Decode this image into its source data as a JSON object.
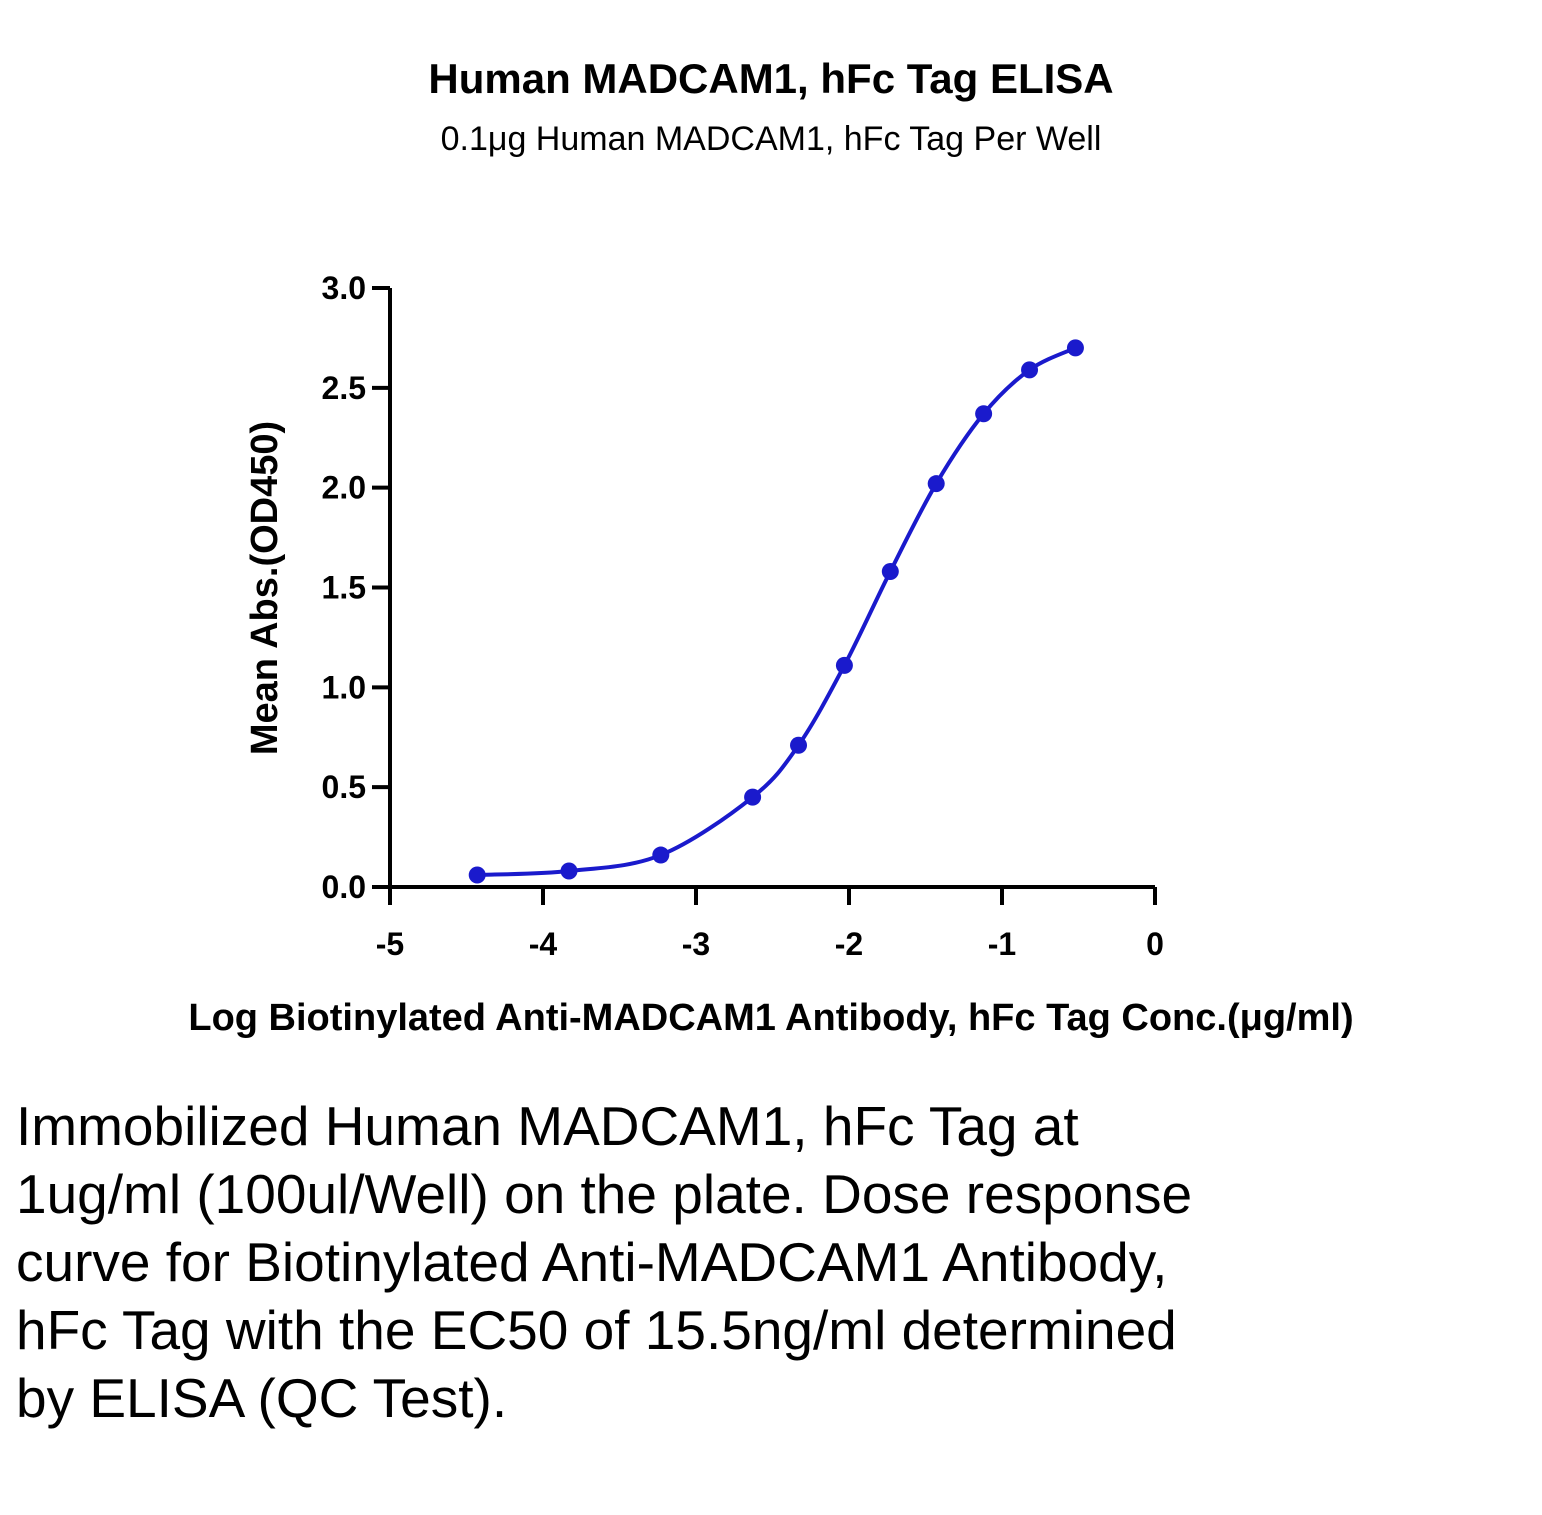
{
  "chart_data": {
    "type": "line",
    "title": "Human MADCAM1, hFc Tag ELISA",
    "subtitle": "0.1μg Human MADCAM1, hFc Tag Per Well",
    "xlabel": "Log Biotinylated Anti-MADCAM1 Antibody, hFc Tag Conc.(μg/ml)",
    "ylabel": "Mean Abs.(OD450)",
    "xlim": [
      -5,
      0
    ],
    "ylim": [
      0,
      3.0
    ],
    "x_ticks": [
      -5,
      -4,
      -3,
      -2,
      -1,
      0
    ],
    "x_tick_labels": [
      "-5",
      "-4",
      "-3",
      "-2",
      "-1",
      "0"
    ],
    "y_ticks": [
      0,
      0.5,
      1.0,
      1.5,
      2.0,
      2.5,
      3.0
    ],
    "y_tick_labels": [
      "0.0",
      "0.5",
      "1.0",
      "1.5",
      "2.0",
      "2.5",
      "3.0"
    ],
    "grid": false,
    "series": [
      {
        "color": "#1a1acc",
        "x": [
          -4.43,
          -3.83,
          -3.23,
          -2.63,
          -2.33,
          -2.03,
          -1.73,
          -1.43,
          -1.12,
          -0.82,
          -0.52
        ],
        "y": [
          0.06,
          0.08,
          0.16,
          0.45,
          0.71,
          1.11,
          1.58,
          2.02,
          2.37,
          2.59,
          2.7
        ]
      }
    ]
  },
  "caption": "Immobilized Human MADCAM1, hFc Tag at 1ug/ml (100ul/Well) on the plate. Dose response curve for Biotinylated Anti-MADCAM1 Antibody, hFc Tag with the EC50 of 15.5ng/ml determined by ELISA (QC Test)."
}
